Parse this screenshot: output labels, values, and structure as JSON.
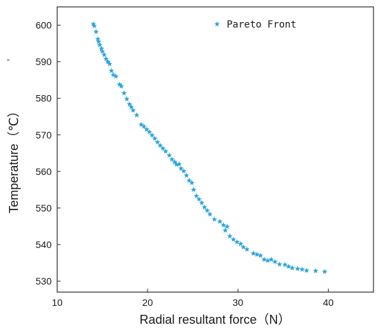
{
  "chart_data": {
    "type": "scatter",
    "title": "",
    "xlabel": "Radial resultant force（N）",
    "ylabel": "Temperature（℃）",
    "xlim": [
      10,
      45
    ],
    "ylim": [
      527,
      605
    ],
    "x_ticks": [
      10,
      20,
      30,
      40
    ],
    "y_ticks": [
      530,
      540,
      550,
      560,
      570,
      580,
      590,
      600
    ],
    "grid": false,
    "legend_position": "top-center",
    "marker": "star",
    "color": "#2ea4d9",
    "series": [
      {
        "name": "Pareto Front",
        "points": [
          [
            14.0,
            600.3
          ],
          [
            14.1,
            599.8
          ],
          [
            14.3,
            598.2
          ],
          [
            14.5,
            596.2
          ],
          [
            14.6,
            595.5
          ],
          [
            14.7,
            594.6
          ],
          [
            14.9,
            593.6
          ],
          [
            15.0,
            592.8
          ],
          [
            15.2,
            591.9
          ],
          [
            15.4,
            590.8
          ],
          [
            15.6,
            590.0
          ],
          [
            15.8,
            589.4
          ],
          [
            16.0,
            587.5
          ],
          [
            16.2,
            586.4
          ],
          [
            16.5,
            586.0
          ],
          [
            16.9,
            583.8
          ],
          [
            17.1,
            583.3
          ],
          [
            17.4,
            581.4
          ],
          [
            17.7,
            579.8
          ],
          [
            18.0,
            578.4
          ],
          [
            18.2,
            577.6
          ],
          [
            18.4,
            576.7
          ],
          [
            18.8,
            575.4
          ],
          [
            19.3,
            572.8
          ],
          [
            19.6,
            572.3
          ],
          [
            19.9,
            571.5
          ],
          [
            20.2,
            570.8
          ],
          [
            20.5,
            569.9
          ],
          [
            20.8,
            569.0
          ],
          [
            21.1,
            568.0
          ],
          [
            21.4,
            567.1
          ],
          [
            21.7,
            566.3
          ],
          [
            22.0,
            565.5
          ],
          [
            22.4,
            564.4
          ],
          [
            22.7,
            563.3
          ],
          [
            23.0,
            562.6
          ],
          [
            23.2,
            561.9
          ],
          [
            23.5,
            562.0
          ],
          [
            23.7,
            560.8
          ],
          [
            24.0,
            560.1
          ],
          [
            24.3,
            558.9
          ],
          [
            24.6,
            557.5
          ],
          [
            24.9,
            556.9
          ],
          [
            25.1,
            555.0
          ],
          [
            25.4,
            553.3
          ],
          [
            25.7,
            552.4
          ],
          [
            26.0,
            551.4
          ],
          [
            26.3,
            550.2
          ],
          [
            26.6,
            549.3
          ],
          [
            26.9,
            548.3
          ],
          [
            27.4,
            546.9
          ],
          [
            28.0,
            546.3
          ],
          [
            28.4,
            545.3
          ],
          [
            28.6,
            543.9
          ],
          [
            28.8,
            544.9
          ],
          [
            29.1,
            542.3
          ],
          [
            29.5,
            541.4
          ],
          [
            29.9,
            540.7
          ],
          [
            30.3,
            540.2
          ],
          [
            30.6,
            539.3
          ],
          [
            31.0,
            538.7
          ],
          [
            31.7,
            537.6
          ],
          [
            32.1,
            537.3
          ],
          [
            32.5,
            537.0
          ],
          [
            32.9,
            535.9
          ],
          [
            33.3,
            535.6
          ],
          [
            33.7,
            535.9
          ],
          [
            34.1,
            535.3
          ],
          [
            34.6,
            534.6
          ],
          [
            35.2,
            534.5
          ],
          [
            35.6,
            534.0
          ],
          [
            36.0,
            533.6
          ],
          [
            36.6,
            533.4
          ],
          [
            37.1,
            533.2
          ],
          [
            37.6,
            532.9
          ],
          [
            38.6,
            532.8
          ],
          [
            39.6,
            532.6
          ]
        ]
      }
    ]
  },
  "decor": {
    "tick_marks_left": "''"
  }
}
